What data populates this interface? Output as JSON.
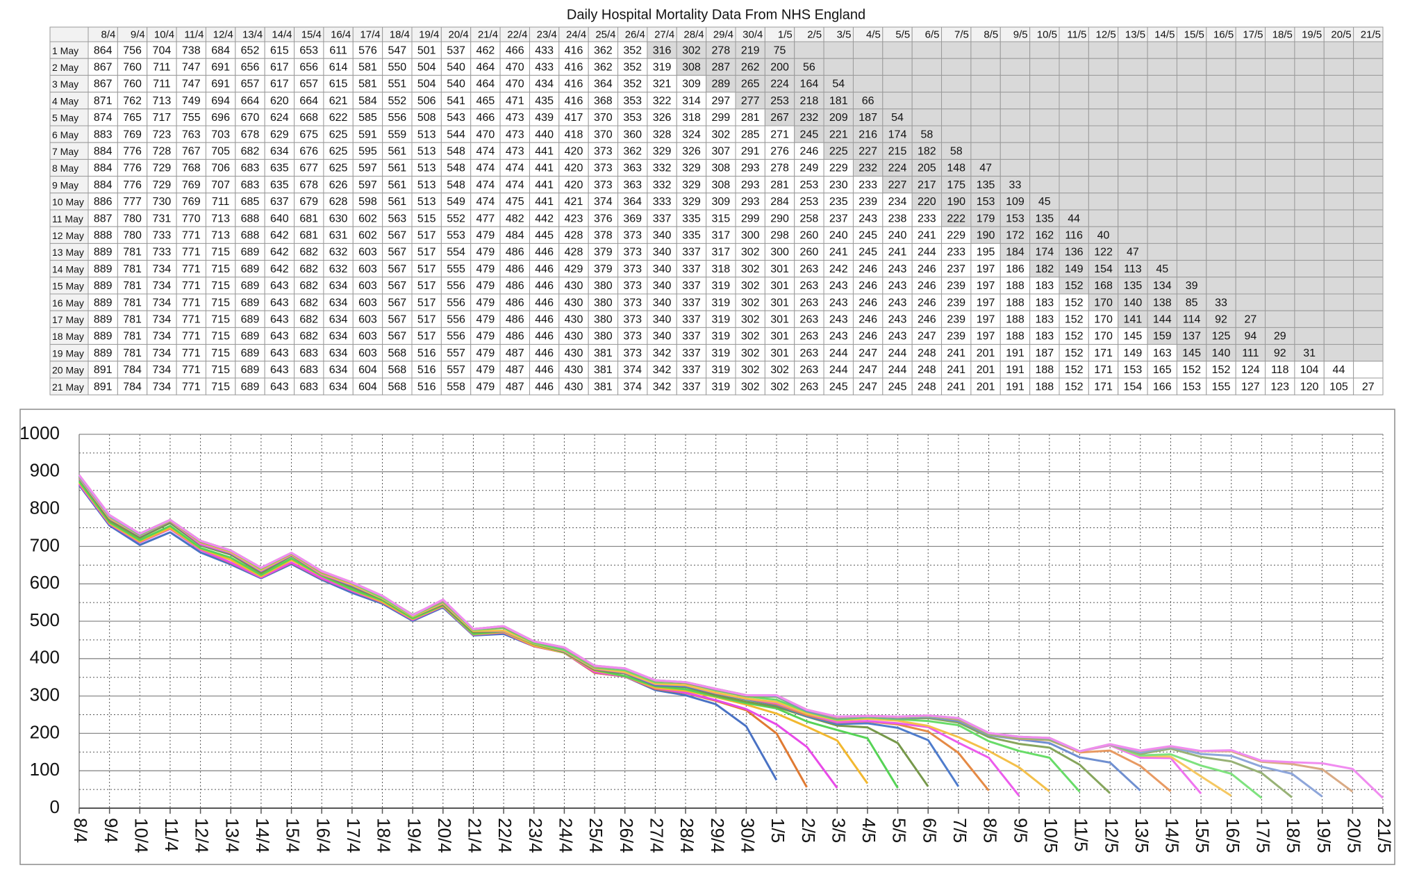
{
  "chart_data": {
    "type": "line",
    "title": "Daily Hospital Mortality Data From NHS England",
    "categories": [
      "8/4",
      "9/4",
      "10/4",
      "11/4",
      "12/4",
      "13/4",
      "14/4",
      "15/4",
      "16/4",
      "17/4",
      "18/4",
      "19/4",
      "20/4",
      "21/4",
      "22/4",
      "23/4",
      "24/4",
      "25/4",
      "26/4",
      "27/4",
      "28/4",
      "29/4",
      "30/4",
      "1/5",
      "2/5",
      "3/5",
      "4/5",
      "5/5",
      "6/5",
      "7/5",
      "8/5",
      "9/5",
      "10/5",
      "11/5",
      "12/5",
      "13/5",
      "14/5",
      "15/5",
      "16/5",
      "17/5",
      "18/5",
      "19/5",
      "20/5",
      "21/5"
    ],
    "ylim": [
      0,
      1000
    ],
    "yticks": [
      0,
      100,
      200,
      300,
      400,
      500,
      600,
      700,
      800,
      900,
      1000
    ],
    "grid": true,
    "series": [
      {
        "name": "1 May",
        "color": "#4a72c4",
        "values": [
          864,
          756,
          704,
          738,
          684,
          652,
          615,
          653,
          611,
          576,
          547,
          501,
          537,
          462,
          466,
          433,
          416,
          362,
          352,
          316,
          302,
          278,
          219,
          75,
          null,
          null,
          null,
          null,
          null,
          null,
          null,
          null,
          null,
          null,
          null,
          null,
          null,
          null,
          null,
          null,
          null,
          null,
          null,
          null
        ]
      },
      {
        "name": "2 May",
        "color": "#e07a32",
        "values": [
          867,
          760,
          711,
          747,
          691,
          656,
          617,
          656,
          614,
          581,
          550,
          504,
          540,
          464,
          470,
          433,
          416,
          362,
          352,
          319,
          308,
          287,
          262,
          200,
          56,
          null,
          null,
          null,
          null,
          null,
          null,
          null,
          null,
          null,
          null,
          null,
          null,
          null,
          null,
          null,
          null,
          null,
          null,
          null
        ]
      },
      {
        "name": "3 May",
        "color": "#e84be8",
        "values": [
          867,
          760,
          711,
          747,
          691,
          657,
          617,
          657,
          615,
          581,
          551,
          504,
          540,
          464,
          470,
          434,
          416,
          364,
          352,
          321,
          309,
          289,
          265,
          224,
          164,
          54,
          null,
          null,
          null,
          null,
          null,
          null,
          null,
          null,
          null,
          null,
          null,
          null,
          null,
          null,
          null,
          null,
          null,
          null
        ]
      },
      {
        "name": "4 May",
        "color": "#f2b830",
        "values": [
          871,
          762,
          713,
          749,
          694,
          664,
          620,
          664,
          621,
          584,
          552,
          506,
          541,
          465,
          471,
          435,
          416,
          368,
          353,
          322,
          314,
          297,
          277,
          253,
          218,
          181,
          66,
          null,
          null,
          null,
          null,
          null,
          null,
          null,
          null,
          null,
          null,
          null,
          null,
          null,
          null,
          null,
          null,
          null
        ]
      },
      {
        "name": "5 May",
        "color": "#56d356",
        "values": [
          874,
          765,
          717,
          755,
          696,
          670,
          624,
          668,
          622,
          585,
          556,
          508,
          543,
          466,
          473,
          439,
          417,
          370,
          353,
          326,
          318,
          299,
          281,
          267,
          232,
          209,
          187,
          54,
          null,
          null,
          null,
          null,
          null,
          null,
          null,
          null,
          null,
          null,
          null,
          null,
          null,
          null,
          null,
          null
        ]
      },
      {
        "name": "6 May",
        "color": "#76984a",
        "values": [
          883,
          769,
          723,
          763,
          703,
          678,
          629,
          675,
          625,
          591,
          559,
          513,
          544,
          470,
          473,
          440,
          418,
          370,
          360,
          328,
          324,
          302,
          285,
          271,
          245,
          221,
          216,
          174,
          58,
          null,
          null,
          null,
          null,
          null,
          null,
          null,
          null,
          null,
          null,
          null,
          null,
          null,
          null,
          null
        ]
      },
      {
        "name": "7 May",
        "color": "#4f7ccc",
        "values": [
          884,
          776,
          728,
          767,
          705,
          682,
          634,
          676,
          625,
          595,
          561,
          513,
          548,
          474,
          473,
          441,
          420,
          373,
          362,
          329,
          326,
          307,
          291,
          276,
          246,
          225,
          227,
          215,
          182,
          58,
          null,
          null,
          null,
          null,
          null,
          null,
          null,
          null,
          null,
          null,
          null,
          null,
          null,
          null
        ]
      },
      {
        "name": "8 May",
        "color": "#e58a45",
        "values": [
          884,
          776,
          729,
          768,
          706,
          683,
          635,
          677,
          625,
          597,
          561,
          513,
          548,
          474,
          474,
          441,
          420,
          373,
          363,
          332,
          329,
          308,
          293,
          278,
          249,
          229,
          232,
          224,
          205,
          148,
          47,
          null,
          null,
          null,
          null,
          null,
          null,
          null,
          null,
          null,
          null,
          null,
          null,
          null
        ]
      },
      {
        "name": "9 May",
        "color": "#ec5cec",
        "values": [
          884,
          776,
          729,
          769,
          707,
          683,
          635,
          678,
          626,
          597,
          561,
          513,
          548,
          474,
          474,
          441,
          420,
          373,
          363,
          332,
          329,
          308,
          293,
          281,
          253,
          230,
          233,
          227,
          217,
          175,
          135,
          33,
          null,
          null,
          null,
          null,
          null,
          null,
          null,
          null,
          null,
          null,
          null,
          null
        ]
      },
      {
        "name": "10 May",
        "color": "#f4c04a",
        "values": [
          886,
          777,
          730,
          769,
          711,
          685,
          637,
          679,
          628,
          598,
          561,
          513,
          549,
          474,
          475,
          441,
          421,
          374,
          364,
          333,
          329,
          309,
          293,
          284,
          253,
          235,
          239,
          234,
          220,
          190,
          153,
          109,
          45,
          null,
          null,
          null,
          null,
          null,
          null,
          null,
          null,
          null,
          null,
          null
        ]
      },
      {
        "name": "11 May",
        "color": "#68dc68",
        "values": [
          887,
          780,
          731,
          770,
          713,
          688,
          640,
          681,
          630,
          602,
          563,
          515,
          552,
          477,
          482,
          442,
          423,
          376,
          369,
          337,
          335,
          315,
          299,
          290,
          258,
          237,
          243,
          238,
          233,
          222,
          179,
          153,
          135,
          44,
          null,
          null,
          null,
          null,
          null,
          null,
          null,
          null,
          null,
          null
        ]
      },
      {
        "name": "12 May",
        "color": "#86a55c",
        "values": [
          888,
          780,
          733,
          771,
          713,
          688,
          642,
          681,
          631,
          602,
          567,
          517,
          553,
          479,
          484,
          445,
          428,
          378,
          373,
          340,
          335,
          317,
          300,
          298,
          260,
          240,
          245,
          240,
          241,
          229,
          190,
          172,
          162,
          116,
          40,
          null,
          null,
          null,
          null,
          null,
          null,
          null,
          null,
          null
        ]
      },
      {
        "name": "13 May",
        "color": "#6f8fd0",
        "values": [
          889,
          781,
          733,
          771,
          715,
          689,
          642,
          682,
          632,
          603,
          567,
          517,
          554,
          479,
          486,
          446,
          428,
          379,
          373,
          340,
          337,
          317,
          302,
          300,
          260,
          241,
          245,
          241,
          244,
          233,
          195,
          184,
          174,
          136,
          122,
          47,
          null,
          null,
          null,
          null,
          null,
          null,
          null,
          null
        ]
      },
      {
        "name": "14 May",
        "color": "#e89a62",
        "values": [
          889,
          781,
          734,
          771,
          715,
          689,
          642,
          682,
          632,
          603,
          567,
          517,
          555,
          479,
          486,
          446,
          429,
          379,
          373,
          340,
          337,
          318,
          302,
          301,
          263,
          242,
          246,
          243,
          246,
          237,
          197,
          186,
          182,
          149,
          154,
          113,
          45,
          null,
          null,
          null,
          null,
          null,
          null,
          null
        ]
      },
      {
        "name": "15 May",
        "color": "#ef74ef",
        "values": [
          889,
          781,
          734,
          771,
          715,
          689,
          643,
          682,
          634,
          603,
          567,
          517,
          556,
          479,
          486,
          446,
          430,
          380,
          373,
          340,
          337,
          319,
          302,
          301,
          263,
          243,
          246,
          243,
          246,
          239,
          197,
          188,
          183,
          152,
          168,
          135,
          134,
          39,
          null,
          null,
          null,
          null,
          null,
          null
        ]
      },
      {
        "name": "16 May",
        "color": "#f5c862",
        "values": [
          889,
          781,
          734,
          771,
          715,
          689,
          643,
          682,
          634,
          603,
          567,
          517,
          556,
          479,
          486,
          446,
          430,
          380,
          373,
          340,
          337,
          319,
          302,
          301,
          263,
          243,
          246,
          243,
          246,
          239,
          197,
          188,
          183,
          152,
          170,
          140,
          138,
          85,
          33,
          null,
          null,
          null,
          null,
          null
        ]
      },
      {
        "name": "17 May",
        "color": "#7ee27e",
        "values": [
          889,
          781,
          734,
          771,
          715,
          689,
          643,
          682,
          634,
          603,
          567,
          517,
          556,
          479,
          486,
          446,
          430,
          380,
          373,
          340,
          337,
          319,
          302,
          301,
          263,
          243,
          246,
          243,
          246,
          239,
          197,
          188,
          183,
          152,
          170,
          141,
          144,
          114,
          92,
          27,
          null,
          null,
          null,
          null
        ]
      },
      {
        "name": "18 May",
        "color": "#98b276",
        "values": [
          889,
          781,
          734,
          771,
          715,
          689,
          643,
          682,
          634,
          603,
          567,
          517,
          556,
          479,
          486,
          446,
          430,
          380,
          373,
          340,
          337,
          319,
          302,
          301,
          263,
          243,
          246,
          243,
          247,
          239,
          197,
          188,
          183,
          152,
          170,
          145,
          159,
          137,
          125,
          94,
          29,
          null,
          null,
          null
        ]
      },
      {
        "name": "19 May",
        "color": "#8ea6da",
        "values": [
          889,
          781,
          734,
          771,
          715,
          689,
          643,
          683,
          634,
          603,
          568,
          516,
          557,
          479,
          487,
          446,
          430,
          381,
          373,
          342,
          337,
          319,
          302,
          301,
          263,
          244,
          247,
          244,
          248,
          241,
          201,
          191,
          187,
          152,
          171,
          149,
          163,
          145,
          140,
          111,
          92,
          31,
          null,
          null
        ]
      },
      {
        "name": "20 May",
        "color": "#d9aa84",
        "values": [
          891,
          784,
          734,
          771,
          715,
          689,
          643,
          683,
          634,
          604,
          568,
          516,
          557,
          479,
          487,
          446,
          430,
          381,
          374,
          342,
          337,
          319,
          302,
          302,
          263,
          244,
          247,
          244,
          248,
          241,
          201,
          191,
          188,
          152,
          171,
          153,
          165,
          152,
          152,
          124,
          118,
          104,
          44,
          null
        ]
      },
      {
        "name": "21 May",
        "color": "#f08cf0",
        "values": [
          891,
          784,
          734,
          771,
          715,
          689,
          643,
          683,
          634,
          604,
          568,
          516,
          558,
          479,
          487,
          446,
          430,
          381,
          374,
          342,
          337,
          319,
          302,
          302,
          263,
          245,
          247,
          245,
          248,
          241,
          201,
          191,
          188,
          152,
          171,
          154,
          166,
          153,
          155,
          127,
          123,
          120,
          105,
          27
        ]
      }
    ]
  }
}
